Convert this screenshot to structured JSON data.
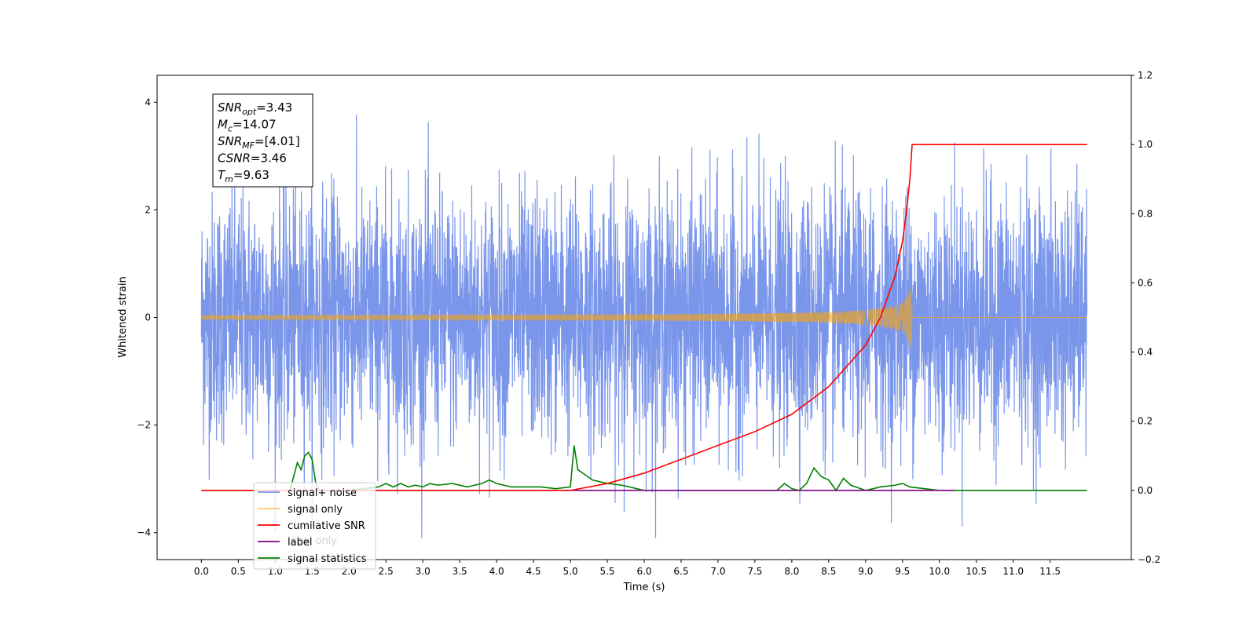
{
  "chart_data": {
    "type": "line",
    "xlabel": "Time (s)",
    "ylabel": "Whitened strain",
    "xlim": [
      -0.6,
      12.6
    ],
    "ylim": [
      -4.5,
      4.5
    ],
    "y2lim": [
      -0.2,
      1.2
    ],
    "x_ticks": [
      "0.0",
      "0.5",
      "1.0",
      "1.5",
      "2.0",
      "2.5",
      "3.0",
      "3.5",
      "4.0",
      "4.5",
      "5.0",
      "5.5",
      "6.0",
      "6.5",
      "7.0",
      "7.5",
      "8.0",
      "8.5",
      "9.0",
      "9.5",
      "10.0",
      "10.5",
      "11.0",
      "11.5"
    ],
    "y_ticks": [
      "4",
      "2",
      "0",
      "−2",
      "−4"
    ],
    "y2_ticks": [
      "1.2",
      "1.0",
      "0.8",
      "0.6",
      "0.4",
      "0.2",
      "0.0",
      "−0.2"
    ],
    "grid": false,
    "legend_placement": "lower-left",
    "legend": [
      {
        "label": "signal+ noise",
        "color": "#4169e1"
      },
      {
        "label": "signal only",
        "color": "#ffa500"
      },
      {
        "label": "cumilative SNR",
        "color": "#ff0000"
      },
      {
        "label": "label",
        "color": "#800080"
      },
      {
        "label": "signal statistics",
        "color": "#008000"
      }
    ],
    "legend_hidden_text": "label only",
    "annotation": [
      {
        "base": "SNR",
        "sub": "opt",
        "value": "=3.43"
      },
      {
        "base": "M",
        "sub": "c",
        "value": "=14.07"
      },
      {
        "base": "SNR",
        "sub": "MF",
        "value": "=[4.01]"
      },
      {
        "base": "CSNR",
        "sub": "",
        "value": "=3.46"
      },
      {
        "base": "T",
        "sub": "m",
        "value": "=9.63"
      }
    ],
    "series": [
      {
        "name": "signal+ noise",
        "axis": "left",
        "x_range": [
          0.0,
          12.0
        ],
        "noise_std": 1.0,
        "min": -4.1,
        "max": 4.1
      },
      {
        "name": "signal only",
        "axis": "left",
        "x_range": [
          0.0,
          12.0
        ],
        "merger_time": 9.63,
        "peak_amplitude": 0.65
      },
      {
        "name": "cumilative SNR",
        "axis": "right",
        "x": [
          0.0,
          5.0,
          5.5,
          6.0,
          6.5,
          7.0,
          7.5,
          8.0,
          8.5,
          9.0,
          9.2,
          9.4,
          9.5,
          9.55,
          9.6,
          9.63,
          10.0,
          11.0,
          12.0
        ],
        "y": [
          0.0,
          0.0,
          0.02,
          0.05,
          0.09,
          0.13,
          0.17,
          0.22,
          0.3,
          0.42,
          0.5,
          0.62,
          0.72,
          0.8,
          0.9,
          1.0,
          1.0,
          1.0,
          1.0
        ]
      },
      {
        "name": "label",
        "axis": "right",
        "x": [
          1.2,
          10.2
        ],
        "y": [
          0.0,
          0.0
        ]
      },
      {
        "name": "signal statistics",
        "axis": "right",
        "x": [
          0.0,
          1.2,
          1.25,
          1.3,
          1.35,
          1.4,
          1.45,
          1.5,
          1.55,
          1.6,
          2.0,
          2.4,
          2.5,
          2.6,
          2.7,
          2.8,
          2.9,
          3.0,
          3.1,
          3.2,
          3.4,
          3.6,
          3.7,
          3.8,
          3.9,
          4.0,
          4.1,
          4.2,
          4.4,
          4.6,
          4.8,
          5.0,
          5.05,
          5.1,
          5.2,
          5.3,
          5.5,
          5.7,
          5.8,
          6.0,
          6.5,
          7.0,
          7.5,
          7.8,
          7.9,
          8.0,
          8.1,
          8.2,
          8.3,
          8.4,
          8.5,
          8.6,
          8.7,
          8.8,
          9.0,
          9.2,
          9.4,
          9.5,
          9.6,
          9.8,
          10.0,
          12.0
        ],
        "y": [
          0.0,
          0.0,
          0.04,
          0.08,
          0.06,
          0.1,
          0.11,
          0.09,
          0.02,
          0.0,
          0.0,
          0.01,
          0.02,
          0.01,
          0.02,
          0.01,
          0.015,
          0.01,
          0.02,
          0.015,
          0.02,
          0.01,
          0.015,
          0.02,
          0.03,
          0.02,
          0.015,
          0.01,
          0.01,
          0.01,
          0.005,
          0.01,
          0.13,
          0.06,
          0.045,
          0.03,
          0.02,
          0.015,
          0.01,
          0.0,
          0.0,
          0.0,
          0.0,
          0.0,
          0.02,
          0.005,
          0.0,
          0.02,
          0.065,
          0.04,
          0.03,
          0.0,
          0.035,
          0.015,
          0.0,
          0.01,
          0.015,
          0.02,
          0.01,
          0.005,
          0.0,
          0.0
        ]
      }
    ]
  }
}
